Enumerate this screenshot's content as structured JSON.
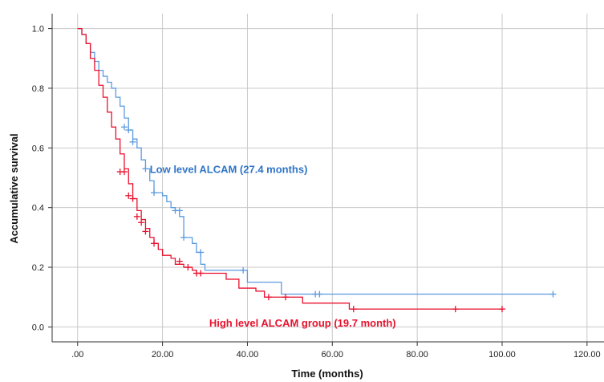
{
  "chart_data": {
    "type": "line",
    "chart_kind": "kaplan-meier step survival curve",
    "xlabel": "Time (months)",
    "ylabel": "Accumulative survival",
    "xlim": [
      -6,
      124
    ],
    "ylim": [
      -0.05,
      1.05
    ],
    "grid": true,
    "x_ticks": [
      0,
      20,
      40,
      60,
      80,
      100,
      120
    ],
    "x_tick_labels": [
      ".00",
      "20.00",
      "40.00",
      "60.00",
      "80.00",
      "100.00",
      "120.00"
    ],
    "y_ticks": [
      0,
      0.2,
      0.4,
      0.6,
      0.8,
      1.0
    ],
    "y_tick_labels": [
      "0.0",
      "0.2",
      "0.4",
      "0.6",
      "0.8",
      "1.0"
    ],
    "annotations": [
      {
        "text": "Low level ALCAM (27.4 months)",
        "x": 17,
        "y": 0.53,
        "color": "#2e75c8"
      },
      {
        "text": "High level ALCAM group (19.7 month)",
        "x": 31,
        "y": 0.015,
        "color": "#e8112d"
      }
    ],
    "series": [
      {
        "color": "#5b9be0",
        "steps": [
          [
            0,
            1.0
          ],
          [
            1,
            0.98
          ],
          [
            2,
            0.95
          ],
          [
            3,
            0.92
          ],
          [
            4,
            0.89
          ],
          [
            5,
            0.86
          ],
          [
            6,
            0.84
          ],
          [
            7,
            0.82
          ],
          [
            8,
            0.8
          ],
          [
            9,
            0.77
          ],
          [
            10,
            0.74
          ],
          [
            11,
            0.7
          ],
          [
            12,
            0.66
          ],
          [
            13,
            0.63
          ],
          [
            14,
            0.6
          ],
          [
            15,
            0.56
          ],
          [
            16,
            0.53
          ],
          [
            17,
            0.49
          ],
          [
            18,
            0.45
          ],
          [
            20,
            0.44
          ],
          [
            21,
            0.42
          ],
          [
            22,
            0.4
          ],
          [
            23,
            0.39
          ],
          [
            24,
            0.37
          ],
          [
            25,
            0.3
          ],
          [
            27,
            0.28
          ],
          [
            28,
            0.25
          ],
          [
            29,
            0.21
          ],
          [
            30,
            0.19
          ],
          [
            40,
            0.15
          ],
          [
            48,
            0.11
          ],
          [
            112,
            0.11
          ]
        ],
        "censored": [
          [
            11,
            0.67
          ],
          [
            12,
            0.66
          ],
          [
            13,
            0.62
          ],
          [
            16,
            0.53
          ],
          [
            18,
            0.45
          ],
          [
            23,
            0.39
          ],
          [
            24,
            0.39
          ],
          [
            25,
            0.3
          ],
          [
            29,
            0.25
          ],
          [
            39,
            0.19
          ],
          [
            56,
            0.11
          ],
          [
            57,
            0.11
          ],
          [
            112,
            0.11
          ]
        ]
      },
      {
        "color": "#e8112d",
        "steps": [
          [
            0,
            1.0
          ],
          [
            1,
            0.98
          ],
          [
            2,
            0.95
          ],
          [
            3,
            0.9
          ],
          [
            4,
            0.86
          ],
          [
            5,
            0.81
          ],
          [
            6,
            0.77
          ],
          [
            7,
            0.72
          ],
          [
            8,
            0.67
          ],
          [
            9,
            0.63
          ],
          [
            10,
            0.58
          ],
          [
            11,
            0.53
          ],
          [
            12,
            0.48
          ],
          [
            13,
            0.43
          ],
          [
            14,
            0.39
          ],
          [
            15,
            0.36
          ],
          [
            16,
            0.33
          ],
          [
            17,
            0.3
          ],
          [
            18,
            0.28
          ],
          [
            19,
            0.26
          ],
          [
            20,
            0.24
          ],
          [
            22,
            0.23
          ],
          [
            23,
            0.21
          ],
          [
            25,
            0.2
          ],
          [
            27,
            0.19
          ],
          [
            28,
            0.18
          ],
          [
            35,
            0.16
          ],
          [
            38,
            0.13
          ],
          [
            42,
            0.12
          ],
          [
            44,
            0.1
          ],
          [
            50,
            0.1
          ],
          [
            53,
            0.08
          ],
          [
            60,
            0.08
          ],
          [
            64,
            0.06
          ],
          [
            100,
            0.06
          ]
        ],
        "censored": [
          [
            10,
            0.52
          ],
          [
            11,
            0.52
          ],
          [
            12,
            0.44
          ],
          [
            13,
            0.43
          ],
          [
            14,
            0.37
          ],
          [
            15,
            0.35
          ],
          [
            16,
            0.32
          ],
          [
            18,
            0.28
          ],
          [
            24,
            0.22
          ],
          [
            26,
            0.2
          ],
          [
            28,
            0.18
          ],
          [
            29,
            0.18
          ],
          [
            45,
            0.1
          ],
          [
            49,
            0.1
          ],
          [
            65,
            0.06
          ],
          [
            89,
            0.06
          ],
          [
            100,
            0.06
          ]
        ]
      }
    ]
  }
}
